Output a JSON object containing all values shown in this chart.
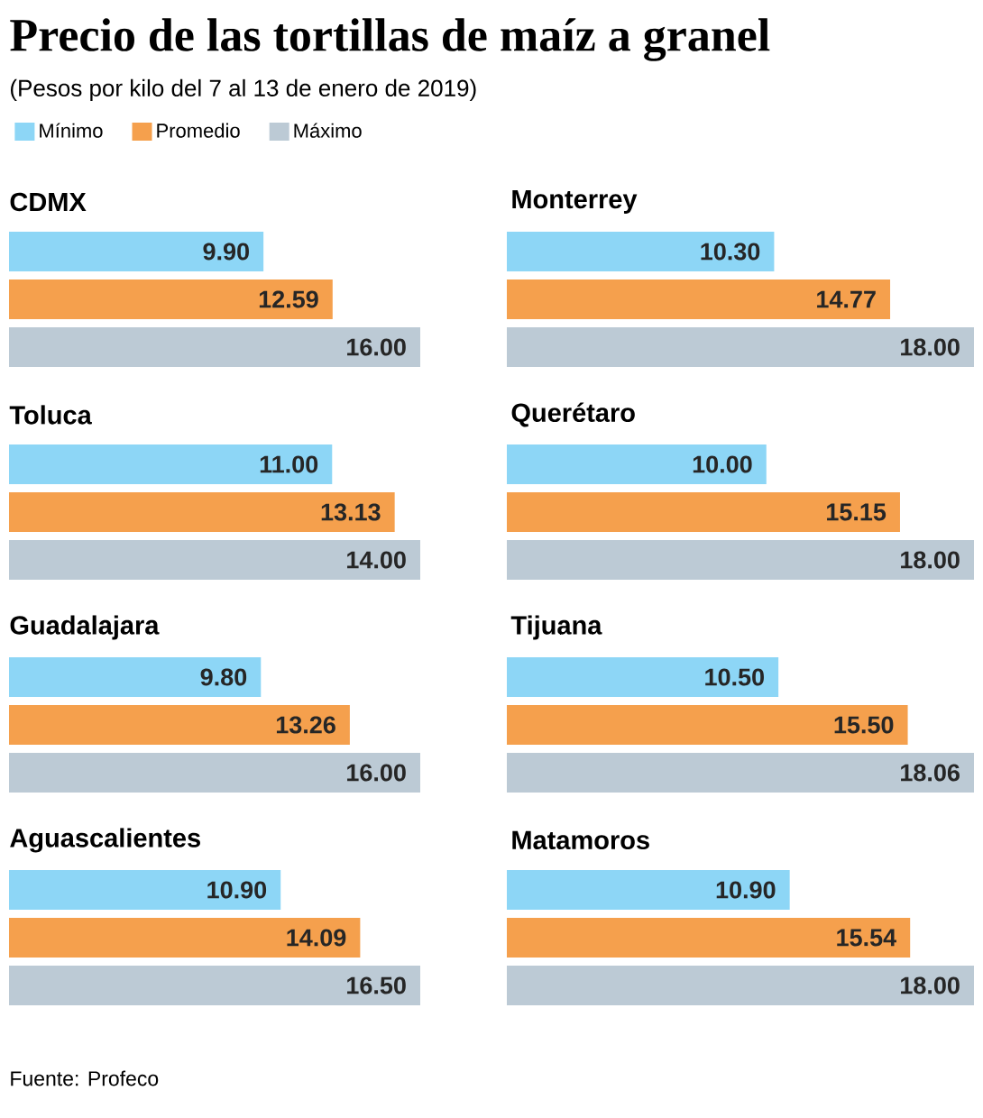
{
  "chart_data": [
    {
      "type": "bar",
      "orientation": "horizontal",
      "title": "Precio de las tortillas de maíz a granel",
      "subtitle": "(Pesos por kilo del 7 al 13 de enero de 2019)",
      "legend": "top left",
      "tick_labels": false,
      "xlabel": "CDMX",
      "categories": [
        null
      ],
      "xlim": [
        0,
        16
      ],
      "series": [
        {
          "name": "Mínimo",
          "color": "#8dd6f6",
          "values": [
            9.9
          ],
          "value_labels": [
            "9.90"
          ]
        },
        {
          "name": "Promedio",
          "color": "#f5a04d",
          "values": [
            12.59
          ],
          "value_labels": [
            "12.59"
          ]
        },
        {
          "name": "Máximo",
          "color": "#bccad5",
          "values": [
            16
          ],
          "value_labels": [
            "16.00"
          ]
        }
      ]
    },
    {
      "type": "bar",
      "orientation": "horizontal",
      "tick_labels": false,
      "xlabel": "Monterrey",
      "categories": [
        null
      ],
      "xlim": [
        0,
        18
      ],
      "series": [
        {
          "color": "#8dd6f6",
          "values": [
            10.3
          ],
          "value_labels": [
            "10.30"
          ]
        },
        {
          "color": "#f5a04d",
          "values": [
            14.77
          ],
          "value_labels": [
            "14.77"
          ]
        },
        {
          "color": "#bccad5",
          "values": [
            18
          ],
          "value_labels": [
            "18.00"
          ]
        }
      ]
    },
    {
      "type": "bar",
      "orientation": "horizontal",
      "tick_labels": false,
      "xlabel": "Toluca",
      "categories": [
        null
      ],
      "xlim": [
        0,
        14
      ],
      "series": [
        {
          "color": "#8dd6f6",
          "values": [
            11
          ],
          "value_labels": [
            "11.00"
          ]
        },
        {
          "color": "#f5a04d",
          "values": [
            13.13
          ],
          "value_labels": [
            "13.13"
          ]
        },
        {
          "color": "#bccad5",
          "values": [
            14
          ],
          "value_labels": [
            "14.00"
          ]
        }
      ]
    },
    {
      "type": "bar",
      "orientation": "horizontal",
      "tick_labels": false,
      "xlabel": "Querétaro",
      "categories": [
        null
      ],
      "xlim": [
        0,
        18
      ],
      "series": [
        {
          "color": "#8dd6f6",
          "values": [
            10
          ],
          "value_labels": [
            "10.00"
          ]
        },
        {
          "color": "#f5a04d",
          "values": [
            15.15
          ],
          "value_labels": [
            "15.15"
          ]
        },
        {
          "color": "#bccad5",
          "values": [
            18
          ],
          "value_labels": [
            "18.00"
          ]
        }
      ]
    },
    {
      "type": "bar",
      "orientation": "horizontal",
      "tick_labels": false,
      "xlabel": "Guadalajara",
      "categories": [
        null
      ],
      "xlim": [
        0,
        16
      ],
      "series": [
        {
          "color": "#8dd6f6",
          "values": [
            9.8
          ],
          "value_labels": [
            "9.80"
          ]
        },
        {
          "color": "#f5a04d",
          "values": [
            13.26
          ],
          "value_labels": [
            "13.26"
          ]
        },
        {
          "color": "#bccad5",
          "values": [
            16
          ],
          "value_labels": [
            "16.00"
          ]
        }
      ]
    },
    {
      "type": "bar",
      "orientation": "horizontal",
      "tick_labels": false,
      "xlabel": "Tijuana",
      "categories": [
        null
      ],
      "xlim": [
        0,
        18.06
      ],
      "series": [
        {
          "color": "#8dd6f6",
          "values": [
            10.5
          ],
          "value_labels": [
            "10.50"
          ]
        },
        {
          "color": "#f5a04d",
          "values": [
            15.5
          ],
          "value_labels": [
            "15.50"
          ]
        },
        {
          "color": "#bccad5",
          "values": [
            18.06
          ],
          "value_labels": [
            "18.06"
          ]
        }
      ]
    },
    {
      "type": "bar",
      "orientation": "horizontal",
      "tick_labels": false,
      "xlabel": "Aguascalientes",
      "categories": [
        null
      ],
      "xlim": [
        0,
        16.5
      ],
      "annotations": [
        "Fuente: Profeco"
      ],
      "series": [
        {
          "color": "#8dd6f6",
          "values": [
            10.9
          ],
          "value_labels": [
            "10.90"
          ]
        },
        {
          "color": "#f5a04d",
          "values": [
            14.09
          ],
          "value_labels": [
            "14.09"
          ]
        },
        {
          "color": "#bccad5",
          "values": [
            16.5
          ],
          "value_labels": [
            "16.50"
          ]
        }
      ]
    },
    {
      "type": "bar",
      "orientation": "horizontal",
      "tick_labels": false,
      "xlabel": "Matamoros",
      "categories": [
        null
      ],
      "xlim": [
        0,
        18
      ],
      "series": [
        {
          "color": "#8dd6f6",
          "values": [
            10.9
          ],
          "value_labels": [
            "10.90"
          ]
        },
        {
          "color": "#f5a04d",
          "values": [
            15.54
          ],
          "value_labels": [
            "15.54"
          ]
        },
        {
          "color": "#bccad5",
          "values": [
            18
          ],
          "value_labels": [
            "18.00"
          ]
        }
      ]
    }
  ]
}
